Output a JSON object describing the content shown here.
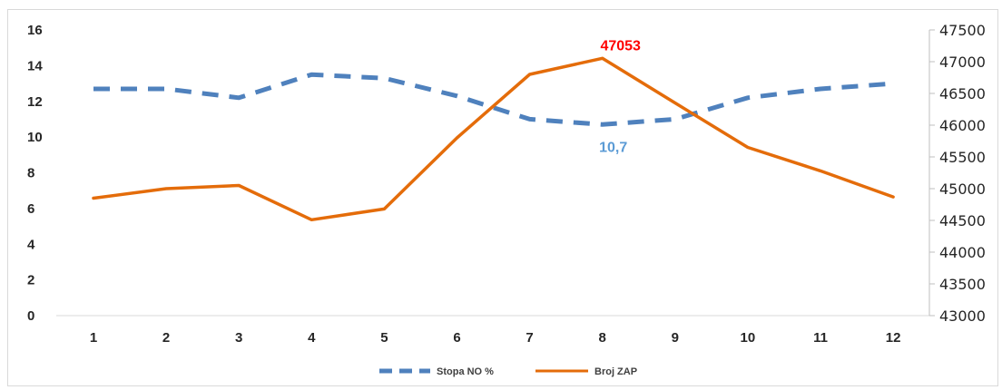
{
  "chart_data": {
    "type": "line",
    "title": "",
    "xlabel": "",
    "ylabel": "",
    "x": [
      1,
      2,
      3,
      4,
      5,
      6,
      7,
      8,
      9,
      10,
      11,
      12
    ],
    "x_tick_labels": [
      "1",
      "2",
      "3",
      "4",
      "5",
      "6",
      "7",
      "8",
      "9",
      "10",
      "11",
      "12"
    ],
    "y_left": {
      "lim": [
        0,
        16
      ],
      "ticks": [
        "0",
        "2",
        "4",
        "6",
        "8",
        "10",
        "12",
        "14",
        "16"
      ]
    },
    "y_right": {
      "lim": [
        43000,
        47500
      ],
      "ticks": [
        "43000",
        "43500",
        "44000",
        "44500",
        "45000",
        "45500",
        "46000",
        "46500",
        "47000",
        "47500"
      ]
    },
    "grid": false,
    "legend_position": "bottom",
    "series": [
      {
        "name": "Stopa NO %",
        "axis": "left",
        "style": "dashed",
        "color": "#4f81bd",
        "values": [
          12.7,
          12.7,
          12.2,
          13.5,
          13.3,
          12.3,
          11.0,
          10.7,
          11.0,
          12.2,
          12.7,
          13.0
        ]
      },
      {
        "name": "Broj ZAP",
        "axis": "right",
        "style": "solid",
        "color": "#e46c0a",
        "values": [
          44850,
          45000,
          45050,
          44510,
          44680,
          45800,
          46800,
          47053,
          46350,
          45650,
          45280,
          44870
        ]
      }
    ],
    "annotations": [
      {
        "text": "47053",
        "series": "Broj ZAP",
        "x": 8,
        "color": "#ff0000"
      },
      {
        "text": "10,7",
        "series": "Stopa NO %",
        "x": 8,
        "color": "#5b9bd5"
      }
    ]
  }
}
